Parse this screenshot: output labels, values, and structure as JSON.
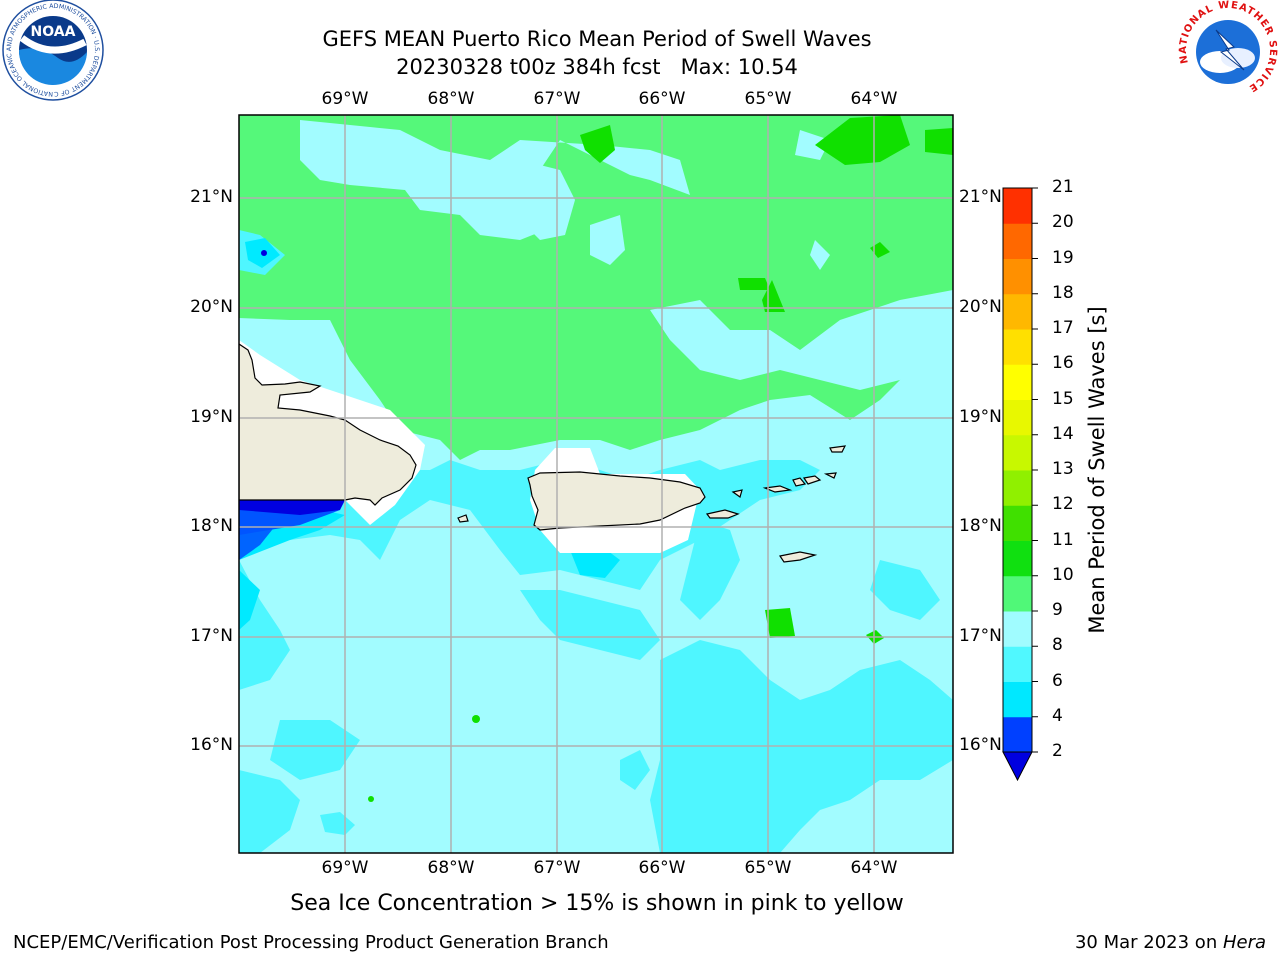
{
  "header": {
    "title_line1": "GEFS MEAN Puerto Rico Mean Period of Swell Waves",
    "title_line2": "20230328 t00z 384h fcst   Max: 10.54"
  },
  "logos": {
    "left": "NOAA",
    "left_ring": "NATIONAL OCEANIC AND ATMOSPHERIC ADMINISTRATION · U.S. DEPARTMENT OF COMMERCE",
    "right_ring": "NATIONAL WEATHER SERVICE"
  },
  "map": {
    "lon_labels": [
      "69°W",
      "68°W",
      "67°W",
      "66°W",
      "65°W",
      "64°W"
    ],
    "lat_labels": [
      "21°N",
      "20°N",
      "19°N",
      "18°N",
      "17°N",
      "16°N"
    ],
    "colors": {
      "land": "#eeecdc",
      "c2_4": "#0055ff",
      "c4_6": "#00eaff",
      "c6_8": "#4ff6ff",
      "c8_9": "#a2fcff",
      "c9_10": "#55f87a",
      "c10_11": "#10e000",
      "grid": "#b0b0b0"
    }
  },
  "colorbar": {
    "title": "Mean Period of Swell Waves [s]",
    "levels": [
      "2",
      "4",
      "6",
      "8",
      "9",
      "10",
      "11",
      "12",
      "13",
      "14",
      "15",
      "16",
      "17",
      "18",
      "19",
      "20",
      "21"
    ],
    "colors": [
      "#0040ff",
      "#00e8ff",
      "#50f8ff",
      "#a0fcff",
      "#50f878",
      "#10e010",
      "#40e000",
      "#90f000",
      "#c8f800",
      "#e8f800",
      "#ffff00",
      "#ffe000",
      "#ffb800",
      "#ff9000",
      "#ff6800",
      "#ff3000",
      "#ff0000"
    ],
    "extend_color": "#0000e0"
  },
  "note": "Sea Ice Concentration > 15% is shown in pink to yellow",
  "footer": {
    "left": "NCEP/EMC/Verification Post Processing Product Generation Branch",
    "date": "30 Mar 2023 on ",
    "host": "Hera"
  }
}
